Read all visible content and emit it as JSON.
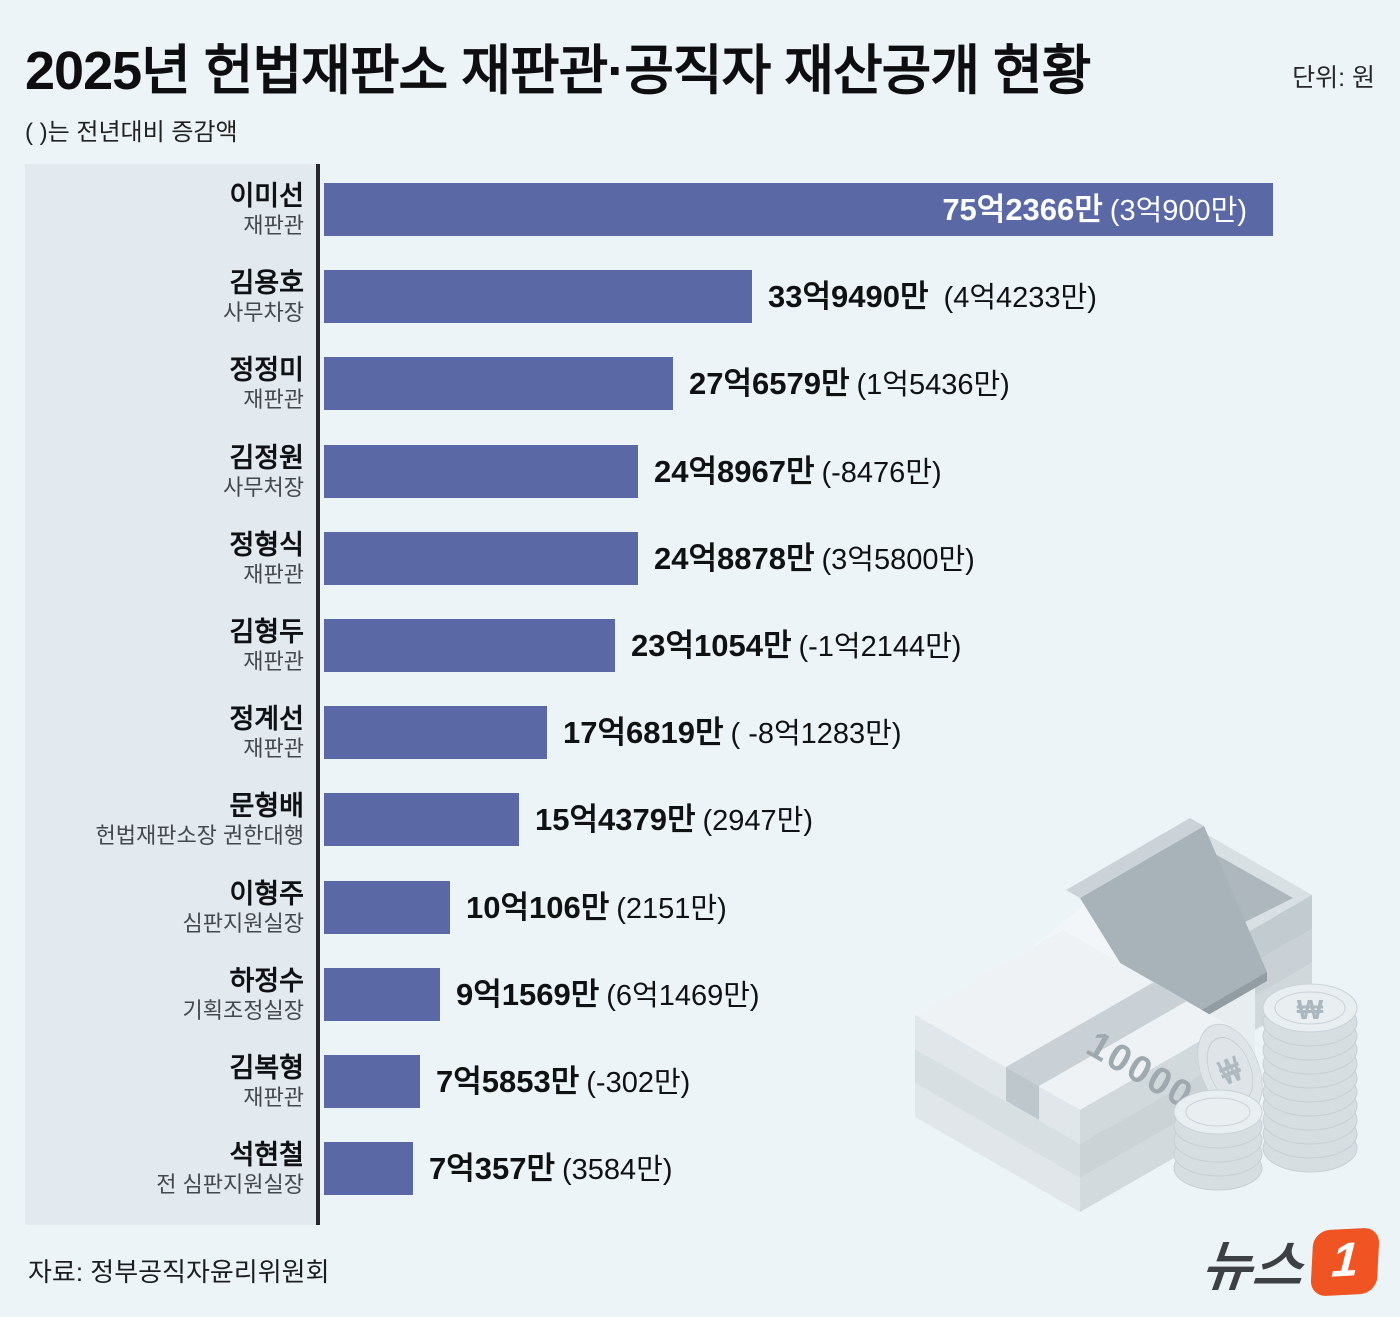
{
  "header": {
    "title": "2025년 헌법재판소 재판관·공직자 재산공개 현황",
    "unit_label": "단위: 원",
    "subtitle": "( )는 전년대비 증감액"
  },
  "footer": {
    "source": "자료: 정부공직자윤리위원회",
    "logo_text": "뉴스",
    "logo_badge": "1"
  },
  "colors": {
    "page_bg": "#EDF4F7",
    "panel_bg": "#E2EAEF",
    "divider": "#26262E",
    "bar": "#5A69A6",
    "inside_label": "#FFFFFF",
    "logo_orange": "#F05423",
    "illustration_gray": "#C6CED3"
  },
  "chart_data": {
    "type": "bar",
    "orientation": "horizontal",
    "title": "2025년 헌법재판소 재판관·공직자 재산공개 현황",
    "unit": "원",
    "value_unit": "억원",
    "x_range_eok": [
      0,
      75.2366
    ],
    "grid": false,
    "legend": false,
    "note": "( )는 전년대비 증감액",
    "rows": [
      {
        "name": "이미선",
        "role": "재판관",
        "value_label": "75억2366만",
        "change_label": "(3억900만)",
        "value_eok": 75.2366,
        "label_inside": true
      },
      {
        "name": "김용호",
        "role": "사무차장",
        "value_label": "33억9490만",
        "change_label": " (4억4233만)",
        "value_eok": 33.949,
        "label_inside": false
      },
      {
        "name": "정정미",
        "role": "재판관",
        "value_label": "27억6579만",
        "change_label": "(1억5436만)",
        "value_eok": 27.6579,
        "label_inside": false
      },
      {
        "name": "김정원",
        "role": "사무처장",
        "value_label": "24억8967만",
        "change_label": "(-8476만)",
        "value_eok": 24.8967,
        "label_inside": false
      },
      {
        "name": "정형식",
        "role": "재판관",
        "value_label": "24억8878만",
        "change_label": "(3억5800만)",
        "value_eok": 24.8878,
        "label_inside": false
      },
      {
        "name": "김형두",
        "role": "재판관",
        "value_label": "23억1054만",
        "change_label": "(-1억2144만)",
        "value_eok": 23.1054,
        "label_inside": false
      },
      {
        "name": "정계선",
        "role": "재판관",
        "value_label": "17억6819만",
        "change_label": "( -8억1283만)",
        "value_eok": 17.6819,
        "label_inside": false
      },
      {
        "name": "문형배",
        "role": "헌법재판소장 권한대행",
        "value_label": "15억4379만",
        "change_label": "(2947만)",
        "value_eok": 15.4379,
        "label_inside": false
      },
      {
        "name": "이형주",
        "role": "심판지원실장",
        "value_label": "10억106만",
        "change_label": "(2151만)",
        "value_eok": 10.0106,
        "label_inside": false
      },
      {
        "name": "하정수",
        "role": "기획조정실장",
        "value_label": "9억1569만",
        "change_label": "(6억1469만)",
        "value_eok": 9.1569,
        "label_inside": false
      },
      {
        "name": "김복형",
        "role": "재판관",
        "value_label": "7억5853만",
        "change_label": "(-302만)",
        "value_eok": 7.5853,
        "label_inside": false
      },
      {
        "name": "석현철",
        "role": "전 심판지원실장",
        "value_label": "7억357만",
        "change_label": "(3584만)",
        "value_eok": 7.0357,
        "label_inside": false
      }
    ]
  }
}
